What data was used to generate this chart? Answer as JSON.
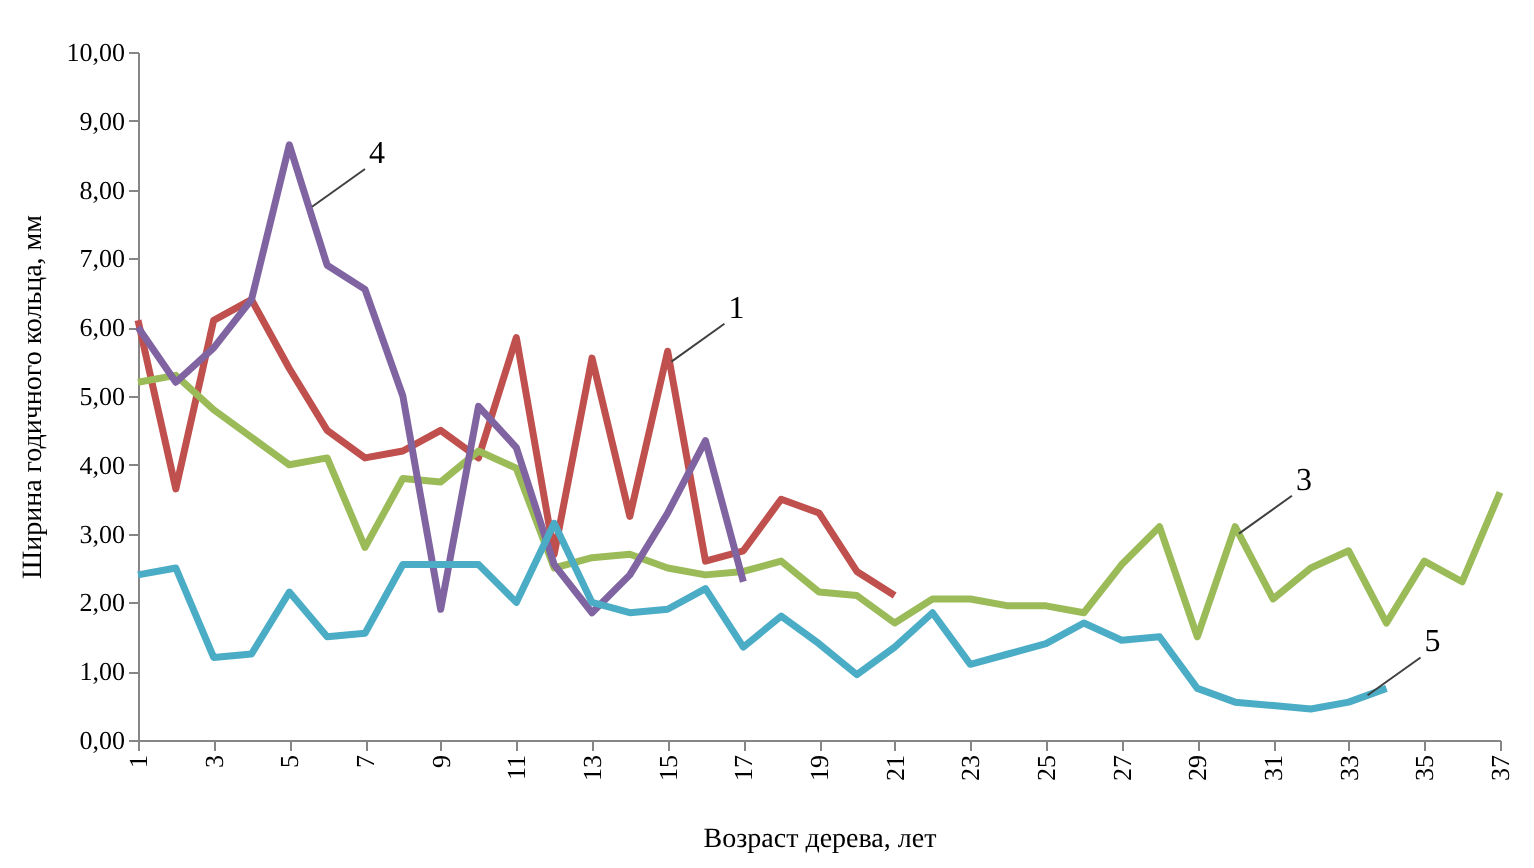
{
  "chart_data": {
    "type": "line",
    "xlabel": "Возраст дерева, лет",
    "ylabel": "Ширина годичного кольца, мм",
    "x": [
      1,
      2,
      3,
      4,
      5,
      6,
      7,
      8,
      9,
      10,
      11,
      12,
      13,
      14,
      15,
      16,
      17,
      18,
      19,
      20,
      21,
      22,
      23,
      24,
      25,
      26,
      27,
      28,
      29,
      30,
      31,
      32,
      33,
      34,
      35,
      36,
      37
    ],
    "xlim": [
      1,
      37
    ],
    "xticks": [
      1,
      3,
      5,
      7,
      9,
      11,
      13,
      15,
      17,
      19,
      21,
      23,
      25,
      27,
      29,
      31,
      33,
      35,
      37
    ],
    "ylim": [
      0,
      10
    ],
    "yticks": [
      {
        "value": 0,
        "label": "0,00"
      },
      {
        "value": 1,
        "label": "1,00"
      },
      {
        "value": 2,
        "label": "2,00"
      },
      {
        "value": 3,
        "label": "3,00"
      },
      {
        "value": 4,
        "label": "4,00"
      },
      {
        "value": 5,
        "label": "5,00"
      },
      {
        "value": 6,
        "label": "6,00"
      },
      {
        "value": 7,
        "label": "7,00"
      },
      {
        "value": 8,
        "label": "8,00"
      },
      {
        "value": 9,
        "label": "9,00"
      },
      {
        "value": 10,
        "label": "10,00"
      }
    ],
    "grid": false,
    "legend": false,
    "marker": "none",
    "line_style": "solid",
    "series": [
      {
        "color": "#c0504d",
        "values": [
          6.1,
          3.65,
          6.1,
          6.4,
          5.4,
          4.5,
          4.1,
          4.2,
          4.5,
          4.1,
          5.85,
          2.7,
          5.55,
          3.25,
          5.65,
          2.6,
          2.75,
          3.5,
          3.3,
          2.45,
          2.1,
          null,
          null,
          null,
          null,
          null,
          null,
          null,
          null,
          null,
          null,
          null,
          null,
          null,
          null,
          null,
          null
        ]
      },
      {
        "color": "#9bbb59",
        "values": [
          5.2,
          5.3,
          4.8,
          4.4,
          4.0,
          4.1,
          2.8,
          3.8,
          3.75,
          4.2,
          3.95,
          2.5,
          2.65,
          2.7,
          2.5,
          2.4,
          2.45,
          2.6,
          2.15,
          2.1,
          1.7,
          2.05,
          2.05,
          1.95,
          1.95,
          1.85,
          2.55,
          3.1,
          1.5,
          3.1,
          2.05,
          2.5,
          2.75,
          1.7,
          2.6,
          2.3,
          3.6
        ]
      },
      {
        "color": "#8064a2",
        "values": [
          6.0,
          5.2,
          5.7,
          6.4,
          8.65,
          6.9,
          6.55,
          5.0,
          1.9,
          4.85,
          4.25,
          2.55,
          1.85,
          2.4,
          3.3,
          4.35,
          2.3,
          null,
          null,
          null,
          null,
          null,
          null,
          null,
          null,
          null,
          null,
          null,
          null,
          null,
          null,
          null,
          null,
          null,
          null,
          null,
          null
        ]
      },
      {
        "color": "#4bacc6",
        "values": [
          2.4,
          2.5,
          1.2,
          1.25,
          2.15,
          1.5,
          1.55,
          2.55,
          2.55,
          2.55,
          2.0,
          3.15,
          2.0,
          1.85,
          1.9,
          2.2,
          1.35,
          1.8,
          1.4,
          0.95,
          1.35,
          1.85,
          1.1,
          1.25,
          1.4,
          1.7,
          1.45,
          1.5,
          0.75,
          0.55,
          0.5,
          0.45,
          0.55,
          0.75,
          null,
          null,
          null
        ]
      }
    ],
    "annotations": [
      {
        "text": "4",
        "x": 5.6,
        "y": 7.75
      },
      {
        "text": "1",
        "x": 15.1,
        "y": 5.5
      },
      {
        "text": "3",
        "x": 30.1,
        "y": 3.0
      },
      {
        "text": "5",
        "x": 33.5,
        "y": 0.65
      }
    ]
  }
}
